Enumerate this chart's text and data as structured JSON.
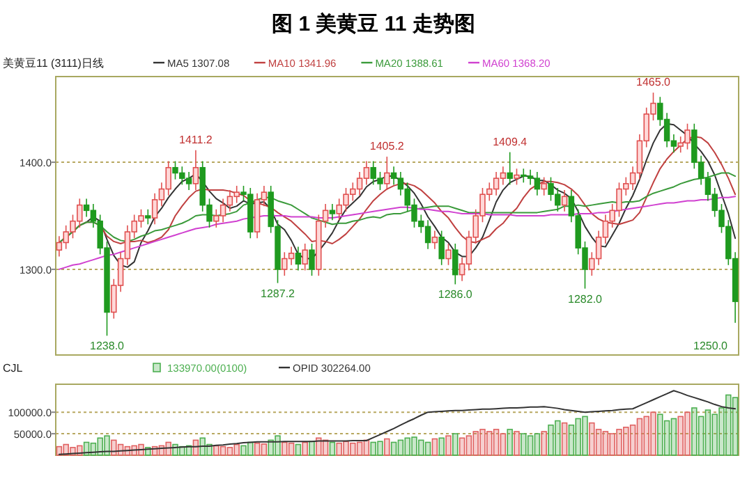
{
  "chart_data": [
    {
      "type": "candlestick",
      "title": "图 1 美黄豆 11 走势图",
      "subtitle": "美黄豆11 (3111)日线",
      "categories": [
        null,
        null,
        null,
        null,
        null,
        null,
        null,
        null,
        null,
        null,
        null,
        null,
        null,
        null,
        null,
        null,
        null,
        null,
        null,
        null,
        null,
        null,
        null,
        null,
        null,
        null,
        null,
        null,
        null,
        null,
        null,
        null,
        null,
        null,
        null,
        null,
        null,
        null,
        null,
        null,
        null,
        null,
        null,
        null,
        null,
        null,
        null,
        null,
        null,
        null,
        null,
        null,
        null,
        null,
        null,
        null,
        null,
        null,
        null,
        null,
        null,
        null,
        null,
        null,
        null,
        null,
        null,
        null,
        null,
        null,
        null,
        null,
        null,
        null,
        null,
        null,
        null,
        null,
        null,
        null,
        null,
        null,
        null,
        null,
        null,
        null,
        null,
        null,
        null,
        null,
        null,
        null,
        null,
        null,
        null,
        null,
        null,
        null,
        null,
        null
      ],
      "ohlc": [
        [
          1318,
          1331,
          1312,
          1325
        ],
        [
          1325,
          1341,
          1319,
          1335
        ],
        [
          1335,
          1351,
          1329,
          1345
        ],
        [
          1345,
          1366,
          1339,
          1360
        ],
        [
          1360,
          1366,
          1349,
          1355
        ],
        [
          1355,
          1361,
          1339,
          1345
        ],
        [
          1345,
          1351,
          1314,
          1320
        ],
        [
          1320,
          1326,
          1238,
          1260
        ],
        [
          1260,
          1291,
          1254,
          1285
        ],
        [
          1285,
          1316,
          1279,
          1310
        ],
        [
          1310,
          1341,
          1304,
          1335
        ],
        [
          1335,
          1351,
          1329,
          1345
        ],
        [
          1345,
          1356,
          1339,
          1350
        ],
        [
          1350,
          1356,
          1342,
          1348
        ],
        [
          1348,
          1371,
          1342,
          1365
        ],
        [
          1365,
          1381,
          1359,
          1375
        ],
        [
          1375,
          1401,
          1369,
          1395
        ],
        [
          1395,
          1401,
          1384,
          1390
        ],
        [
          1390,
          1396,
          1379,
          1385
        ],
        [
          1385,
          1391,
          1374,
          1380
        ],
        [
          1380,
          1411.2,
          1374,
          1395
        ],
        [
          1395,
          1401,
          1354,
          1360
        ],
        [
          1360,
          1366,
          1339,
          1345
        ],
        [
          1345,
          1356,
          1339,
          1350
        ],
        [
          1350,
          1366,
          1344,
          1360
        ],
        [
          1360,
          1374,
          1354,
          1368
        ],
        [
          1368,
          1378,
          1362,
          1372
        ],
        [
          1372,
          1378,
          1364,
          1370
        ],
        [
          1370,
          1376,
          1329,
          1335
        ],
        [
          1335,
          1371,
          1329,
          1365
        ],
        [
          1365,
          1378,
          1359,
          1372
        ],
        [
          1372,
          1378,
          1334,
          1340
        ],
        [
          1340,
          1346,
          1287.2,
          1300
        ],
        [
          1300,
          1316,
          1294,
          1310
        ],
        [
          1310,
          1321,
          1304,
          1315
        ],
        [
          1315,
          1321,
          1299,
          1305
        ],
        [
          1305,
          1324,
          1299,
          1318
        ],
        [
          1318,
          1324,
          1294,
          1300
        ],
        [
          1300,
          1351,
          1294,
          1345
        ],
        [
          1345,
          1361,
          1339,
          1355
        ],
        [
          1355,
          1361,
          1346,
          1352
        ],
        [
          1352,
          1366,
          1346,
          1360
        ],
        [
          1360,
          1376,
          1354,
          1370
        ],
        [
          1370,
          1381,
          1364,
          1375
        ],
        [
          1375,
          1391,
          1369,
          1385
        ],
        [
          1385,
          1401,
          1379,
          1395
        ],
        [
          1395,
          1401,
          1379,
          1385
        ],
        [
          1385,
          1391,
          1374,
          1380
        ],
        [
          1380,
          1405.2,
          1374,
          1390
        ],
        [
          1390,
          1396,
          1379,
          1385
        ],
        [
          1385,
          1391,
          1369,
          1375
        ],
        [
          1375,
          1381,
          1354,
          1360
        ],
        [
          1360,
          1366,
          1339,
          1345
        ],
        [
          1345,
          1351,
          1334,
          1340
        ],
        [
          1340,
          1346,
          1319,
          1325
        ],
        [
          1325,
          1336,
          1319,
          1330
        ],
        [
          1330,
          1336,
          1304,
          1310
        ],
        [
          1310,
          1324,
          1304,
          1318
        ],
        [
          1318,
          1324,
          1286.0,
          1295
        ],
        [
          1295,
          1311,
          1289,
          1305
        ],
        [
          1305,
          1336,
          1299,
          1330
        ],
        [
          1330,
          1356,
          1324,
          1350
        ],
        [
          1350,
          1376,
          1344,
          1370
        ],
        [
          1370,
          1381,
          1364,
          1375
        ],
        [
          1375,
          1391,
          1369,
          1385
        ],
        [
          1385,
          1396,
          1379,
          1390
        ],
        [
          1390,
          1409.4,
          1379,
          1385
        ],
        [
          1385,
          1394,
          1379,
          1388
        ],
        [
          1388,
          1394,
          1381,
          1387
        ],
        [
          1387,
          1393,
          1379,
          1385
        ],
        [
          1385,
          1391,
          1369,
          1375
        ],
        [
          1375,
          1386,
          1369,
          1380
        ],
        [
          1380,
          1386,
          1364,
          1370
        ],
        [
          1370,
          1376,
          1354,
          1360
        ],
        [
          1360,
          1374,
          1354,
          1368
        ],
        [
          1368,
          1374,
          1344,
          1350
        ],
        [
          1350,
          1356,
          1314,
          1320
        ],
        [
          1320,
          1326,
          1282.0,
          1300
        ],
        [
          1300,
          1316,
          1294,
          1310
        ],
        [
          1310,
          1336,
          1304,
          1330
        ],
        [
          1330,
          1351,
          1324,
          1345
        ],
        [
          1345,
          1361,
          1339,
          1355
        ],
        [
          1355,
          1381,
          1349,
          1375
        ],
        [
          1375,
          1386,
          1369,
          1380
        ],
        [
          1380,
          1396,
          1374,
          1390
        ],
        [
          1390,
          1426,
          1384,
          1420
        ],
        [
          1420,
          1451,
          1414,
          1445
        ],
        [
          1445,
          1465.0,
          1439,
          1455
        ],
        [
          1455,
          1461,
          1434,
          1440
        ],
        [
          1440,
          1446,
          1414,
          1420
        ],
        [
          1420,
          1426,
          1409,
          1415
        ],
        [
          1415,
          1424,
          1409,
          1418
        ],
        [
          1418,
          1436,
          1412,
          1430
        ],
        [
          1430,
          1436,
          1394,
          1400
        ],
        [
          1400,
          1406,
          1379,
          1385
        ],
        [
          1385,
          1391,
          1364,
          1370
        ],
        [
          1370,
          1376,
          1349,
          1355
        ],
        [
          1355,
          1361,
          1334,
          1340
        ],
        [
          1340,
          1346,
          1304,
          1310
        ],
        [
          1310,
          1316,
          1250.0,
          1270
        ]
      ],
      "series": [
        {
          "type": "line",
          "name": "MA5 1307.08",
          "color": "#333333",
          "values": [
            1325,
            1330,
            1335,
            1341,
            1344,
            1349,
            1345,
            1328,
            1313,
            1304,
            1302,
            1307,
            1325,
            1336,
            1349,
            1357,
            1367,
            1375,
            1382,
            1385,
            1389,
            1382,
            1373,
            1366,
            1362,
            1357,
            1359,
            1364,
            1361,
            1362,
            1363,
            1356,
            1342,
            1337,
            1327,
            1314,
            1310,
            1310,
            1317,
            1325,
            1334,
            1346,
            1356,
            1362,
            1368,
            1377,
            1382,
            1384,
            1387,
            1387,
            1383,
            1378,
            1371,
            1361,
            1349,
            1340,
            1330,
            1325,
            1316,
            1312,
            1312,
            1320,
            1330,
            1346,
            1363,
            1374,
            1381,
            1384,
            1387,
            1387,
            1383,
            1383,
            1379,
            1374,
            1371,
            1366,
            1354,
            1340,
            1330,
            1322,
            1321,
            1332,
            1343,
            1357,
            1369,
            1384,
            1402,
            1418,
            1430,
            1436,
            1435,
            1430,
            1425,
            1417,
            1410,
            1401,
            1388,
            1370,
            1352,
            1329
          ]
        },
        {
          "type": "line",
          "name": "MA10 1341.96",
          "color": "#c04040",
          "values": [
            1325,
            1330,
            1335,
            1341,
            1344,
            1344,
            1341,
            1331,
            1326,
            1324,
            1326,
            1326,
            1327,
            1325,
            1327,
            1330,
            1337,
            1350,
            1359,
            1367,
            1373,
            1375,
            1374,
            1374,
            1374,
            1373,
            1371,
            1369,
            1364,
            1362,
            1360,
            1358,
            1353,
            1349,
            1345,
            1339,
            1333,
            1326,
            1327,
            1326,
            1324,
            1328,
            1333,
            1340,
            1347,
            1356,
            1364,
            1370,
            1375,
            1378,
            1380,
            1380,
            1378,
            1374,
            1368,
            1362,
            1354,
            1348,
            1339,
            1331,
            1326,
            1325,
            1328,
            1331,
            1338,
            1343,
            1351,
            1357,
            1367,
            1375,
            1379,
            1382,
            1382,
            1381,
            1379,
            1375,
            1369,
            1360,
            1352,
            1347,
            1344,
            1343,
            1342,
            1344,
            1346,
            1353,
            1367,
            1381,
            1394,
            1403,
            1410,
            1416,
            1422,
            1424,
            1423,
            1418,
            1409,
            1398,
            1385,
            1370
          ]
        },
        {
          "type": "line",
          "name": "MA20 1388.61",
          "color": "#3a9a3a",
          "values": [
            1325,
            1330,
            1335,
            1341,
            1344,
            1344,
            1341,
            1335,
            1330,
            1327,
            1326,
            1328,
            1331,
            1333,
            1336,
            1337,
            1339,
            1341,
            1343,
            1346,
            1350,
            1351,
            1351,
            1350,
            1351,
            1352,
            1354,
            1360,
            1362,
            1365,
            1367,
            1367,
            1364,
            1362,
            1360,
            1356,
            1352,
            1348,
            1346,
            1344,
            1342,
            1343,
            1343,
            1345,
            1346,
            1348,
            1349,
            1348,
            1351,
            1352,
            1352,
            1354,
            1356,
            1357,
            1358,
            1359,
            1359,
            1359,
            1357,
            1355,
            1353,
            1353,
            1353,
            1353,
            1353,
            1353,
            1353,
            1353,
            1353,
            1353,
            1353,
            1354,
            1355,
            1356,
            1359,
            1359,
            1360,
            1359,
            1360,
            1361,
            1362,
            1363,
            1362,
            1363,
            1363,
            1364,
            1368,
            1371,
            1373,
            1375,
            1377,
            1380,
            1382,
            1384,
            1385,
            1386,
            1388,
            1390,
            1390,
            1387
          ]
        },
        {
          "type": "line",
          "name": "MA60 1368.20",
          "color": "#d040d0",
          "values": [
            1300,
            1302,
            1304,
            1305,
            1307,
            1309,
            1311,
            1313,
            1314,
            1316,
            1318,
            1320,
            1322,
            1324,
            1326,
            1328,
            1330,
            1332,
            1334,
            1336,
            1338,
            1339,
            1340,
            1342,
            1343,
            1344,
            1345,
            1347,
            1348,
            1349,
            1350,
            1350,
            1350,
            1350,
            1349,
            1349,
            1349,
            1349,
            1348,
            1348,
            1348,
            1349,
            1350,
            1351,
            1352,
            1353,
            1354,
            1355,
            1356,
            1357,
            1358,
            1358,
            1357,
            1356,
            1356,
            1355,
            1354,
            1354,
            1353,
            1352,
            1352,
            1352,
            1352,
            1351,
            1351,
            1351,
            1351,
            1350,
            1350,
            1350,
            1350,
            1350,
            1351,
            1351,
            1351,
            1351,
            1352,
            1352,
            1352,
            1353,
            1353,
            1354,
            1355,
            1356,
            1357,
            1358,
            1359,
            1360,
            1361,
            1362,
            1362,
            1363,
            1364,
            1364,
            1365,
            1365,
            1366,
            1367,
            1367,
            1368
          ]
        }
      ],
      "ylim": [
        1220,
        1480
      ],
      "yticks": [
        {
          "value": 1300,
          "label": "1300.0"
        },
        {
          "value": 1400,
          "label": "1400.0"
        }
      ],
      "tick_labels": "y",
      "grid": "y",
      "legend": "top",
      "annotations": [
        {
          "text": "1411.2",
          "y": 1411.2
        },
        {
          "text": "1405.2",
          "y": 1405.2
        },
        {
          "text": "1409.4",
          "y": 1409.4
        },
        {
          "text": "1465.0",
          "y": 1465.0
        },
        {
          "text": "1238.0",
          "y": 1238
        },
        {
          "text": "1287.2",
          "y": 1287.2
        },
        {
          "text": "1286.0",
          "y": 1286.0
        },
        {
          "text": "1282.0",
          "y": 1282.0
        },
        "1250.0"
      ]
    },
    {
      "type": "bar",
      "subtitle": "CJL",
      "categories": [
        null,
        null,
        null,
        null,
        null,
        null,
        null,
        null,
        null,
        null,
        null,
        null,
        null,
        null,
        null,
        null,
        null,
        null,
        null,
        null,
        null,
        null,
        null,
        null,
        null,
        null,
        null,
        null,
        null,
        null,
        null,
        null,
        null,
        null,
        null,
        null,
        null,
        null,
        null,
        null,
        null,
        null,
        null,
        null,
        null,
        null,
        null,
        null,
        null,
        null,
        null,
        null,
        null,
        null,
        null,
        null,
        null,
        null,
        null,
        null,
        null,
        null,
        null,
        null,
        null,
        null,
        null,
        null,
        null,
        null,
        null,
        null,
        null,
        null,
        null,
        null,
        null,
        null,
        null,
        null,
        null,
        null,
        null,
        null,
        null,
        null,
        null,
        null,
        null,
        null,
        null,
        null,
        null,
        null,
        null,
        null,
        null,
        null,
        null,
        null
      ],
      "series": [
        {
          "type": "bar",
          "name": "133970.00(0100)",
          "colors": [
            "#e06060",
            "#e06060",
            "#e06060",
            "#e06060",
            "#4caf50",
            "#4caf50",
            "#4caf50",
            "#4caf50",
            "#e06060",
            "#e06060",
            "#e06060",
            "#e06060",
            "#e06060",
            "#4caf50",
            "#e06060",
            "#e06060",
            "#e06060",
            "#4caf50",
            "#4caf50",
            "#4caf50",
            "#e06060",
            "#4caf50",
            "#4caf50",
            "#e06060",
            "#e06060",
            "#e06060",
            "#e06060",
            "#4caf50",
            "#4caf50",
            "#e06060",
            "#e06060",
            "#4caf50",
            "#4caf50",
            "#e06060",
            "#e06060",
            "#4caf50",
            "#e06060",
            "#4caf50",
            "#e06060",
            "#e06060",
            "#4caf50",
            "#e06060",
            "#e06060",
            "#e06060",
            "#e06060",
            "#e06060",
            "#4caf50",
            "#4caf50",
            "#e06060",
            "#4caf50",
            "#4caf50",
            "#4caf50",
            "#4caf50",
            "#4caf50",
            "#4caf50",
            "#e06060",
            "#4caf50",
            "#e06060",
            "#4caf50",
            "#e06060",
            "#e06060",
            "#e06060",
            "#e06060",
            "#e06060",
            "#e06060",
            "#e06060",
            "#4caf50",
            "#e06060",
            "#4caf50",
            "#4caf50",
            "#4caf50",
            "#e06060",
            "#4caf50",
            "#4caf50",
            "#e06060",
            "#4caf50",
            "#4caf50",
            "#4caf50",
            "#e06060",
            "#e06060",
            "#e06060",
            "#e06060",
            "#e06060",
            "#e06060",
            "#e06060",
            "#e06060",
            "#e06060",
            "#e06060",
            "#4caf50",
            "#4caf50",
            "#4caf50",
            "#e06060",
            "#e06060",
            "#4caf50",
            "#4caf50",
            "#4caf50",
            "#4caf50",
            "#4caf50",
            "#4caf50",
            "#4caf50"
          ],
          "values": [
            20000,
            25000,
            18000,
            22000,
            30000,
            28000,
            40000,
            45000,
            35000,
            25000,
            20000,
            22000,
            25000,
            18000,
            20000,
            22000,
            30000,
            25000,
            20000,
            22000,
            35000,
            40000,
            25000,
            22000,
            20000,
            18000,
            25000,
            22000,
            30000,
            28000,
            26000,
            35000,
            45000,
            30000,
            28000,
            25000,
            30000,
            32000,
            40000,
            35000,
            30000,
            28000,
            32000,
            28000,
            30000,
            35000,
            30000,
            32000,
            38000,
            30000,
            35000,
            40000,
            42000,
            35000,
            30000,
            38000,
            40000,
            45000,
            50000,
            40000,
            45000,
            55000,
            60000,
            55000,
            60000,
            50000,
            60000,
            55000,
            50000,
            45000,
            50000,
            55000,
            70000,
            80000,
            75000,
            70000,
            85000,
            90000,
            75000,
            60000,
            55000,
            50000,
            60000,
            65000,
            70000,
            85000,
            90000,
            100000,
            95000,
            80000,
            85000,
            90000,
            100000,
            110000,
            90000,
            105000,
            95000,
            110000,
            140000,
            134000
          ]
        },
        {
          "type": "line",
          "name": "OPID 302264.00",
          "color": "#333333",
          "values": [
            2000,
            3000,
            4000,
            5000,
            6000,
            7000,
            8000,
            9000,
            9000,
            10000,
            11000,
            12000,
            13000,
            14000,
            15000,
            16000,
            17000,
            18000,
            19000,
            20000,
            20000,
            21000,
            21000,
            23000,
            24000,
            26000,
            27000,
            29000,
            30000,
            31000,
            31000,
            31000,
            31000,
            32000,
            32000,
            32000,
            32000,
            32000,
            33000,
            33000,
            33000,
            33000,
            33000,
            34000,
            34000,
            34000,
            41000,
            48000,
            55000,
            62000,
            70000,
            78000,
            85000,
            93000,
            100000,
            101000,
            102000,
            103000,
            104000,
            104000,
            105000,
            106000,
            107000,
            107000,
            108000,
            109000,
            110000,
            110000,
            111000,
            112000,
            112000,
            113000,
            111000,
            109000,
            106000,
            104000,
            102000,
            100000,
            101000,
            102000,
            103000,
            104000,
            106000,
            107000,
            108000,
            115000,
            122000,
            129000,
            136000,
            143000,
            150000,
            145000,
            139000,
            134000,
            129000,
            124000,
            118000,
            113000,
            110000,
            108000
          ]
        }
      ],
      "ylim": [
        0,
        165000
      ],
      "yticks": [
        {
          "value": 50000,
          "label": "50000.0"
        },
        {
          "value": 100000,
          "label": "100000.0"
        }
      ],
      "tick_labels": "y",
      "grid": "y",
      "legend": "top"
    }
  ]
}
